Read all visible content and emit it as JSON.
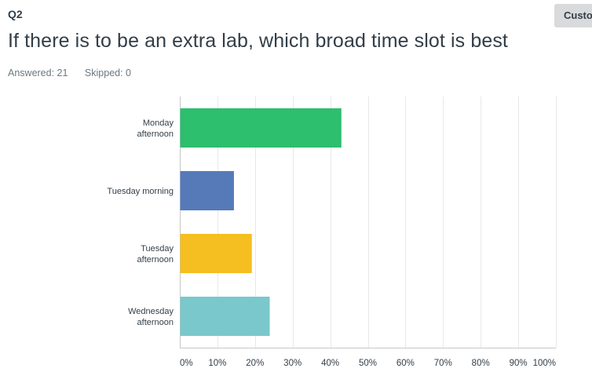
{
  "question": {
    "number": "Q2",
    "title": "If there is to be an extra lab, which broad time slot is best",
    "answered": "Answered: 21",
    "skipped": "Skipped: 0"
  },
  "toolbar": {
    "customize_label": "Customize"
  },
  "chart_data": {
    "type": "bar",
    "orientation": "horizontal",
    "categories": [
      [
        "Monday",
        "afternoon"
      ],
      [
        "Tuesday morning"
      ],
      [
        "Tuesday",
        "afternoon"
      ],
      [
        "Wednesday",
        "afternoon"
      ]
    ],
    "values": [
      42.86,
      14.29,
      19.05,
      23.81
    ],
    "colors": [
      "#2dbe6e",
      "#567ab8",
      "#f5be21",
      "#7ac8cc"
    ],
    "xlim": [
      0,
      100
    ],
    "ticks": [
      0,
      10,
      20,
      30,
      40,
      50,
      60,
      70,
      80,
      90,
      100
    ],
    "tick_labels": [
      "0%",
      "10%",
      "20%",
      "30%",
      "40%",
      "50%",
      "60%",
      "70%",
      "80%",
      "90%",
      "100%"
    ],
    "grid": true
  }
}
